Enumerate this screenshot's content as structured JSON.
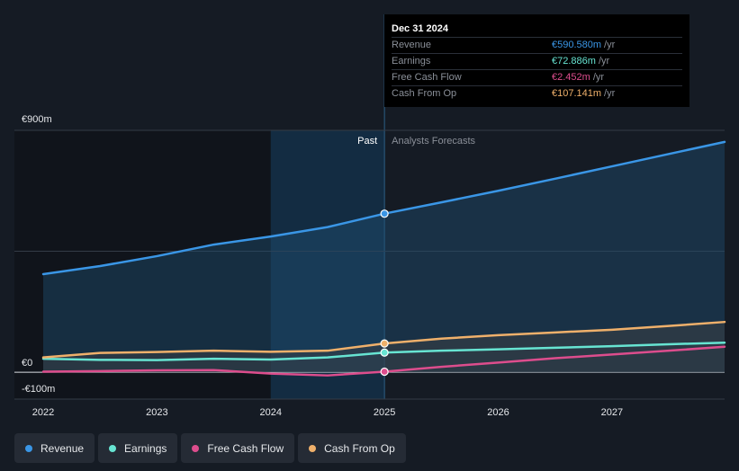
{
  "tooltip": {
    "date": "Dec 31 2024",
    "rows": [
      {
        "label": "Revenue",
        "value": "€590.580m",
        "unit": "/yr",
        "color": "#3a96e6"
      },
      {
        "label": "Earnings",
        "value": "€72.886m",
        "unit": "/yr",
        "color": "#67e4d2"
      },
      {
        "label": "Free Cash Flow",
        "value": "€2.452m",
        "unit": "/yr",
        "color": "#dd4d8d"
      },
      {
        "label": "Cash From Op",
        "value": "€107.141m",
        "unit": "/yr",
        "color": "#efb06b"
      }
    ]
  },
  "legend": [
    {
      "label": "Revenue",
      "color": "#3a96e6"
    },
    {
      "label": "Earnings",
      "color": "#67e4d2"
    },
    {
      "label": "Free Cash Flow",
      "color": "#dd4d8d"
    },
    {
      "label": "Cash From Op",
      "color": "#efb06b"
    }
  ],
  "chart_data": {
    "type": "line",
    "y_tick_labels": [
      "€900m",
      "€0",
      "-€100m"
    ],
    "ylim": [
      -100,
      900
    ],
    "xlim": [
      2022.0,
      2027.99
    ],
    "x_tick_values": [
      2022,
      2023,
      2024,
      2025,
      2026,
      2027
    ],
    "x_tick_labels": [
      "2022",
      "2023",
      "2024",
      "2025",
      "2026",
      "2027"
    ],
    "region_labels": {
      "past": "Past",
      "forecast": "Analysts Forecasts"
    },
    "past_end": 2025.0,
    "highlight_start": 2024.0,
    "series": [
      {
        "name": "Revenue",
        "color": "#3a96e6",
        "x": [
          2022.0,
          2022.5,
          2023.0,
          2023.5,
          2024.0,
          2024.5,
          2025.0,
          2025.5,
          2026.0,
          2026.5,
          2027.0,
          2027.5,
          2027.99
        ],
        "y": [
          365,
          395,
          432,
          475,
          505,
          540,
          590,
          632,
          675,
          720,
          766,
          812,
          857
        ]
      },
      {
        "name": "Earnings",
        "color": "#67e4d2",
        "x": [
          2022.0,
          2022.5,
          2023.0,
          2023.5,
          2024.0,
          2024.5,
          2025.0,
          2025.5,
          2026.0,
          2026.5,
          2027.0,
          2027.5,
          2027.99
        ],
        "y": [
          50,
          46,
          45,
          50,
          47,
          55,
          73,
          80,
          85,
          91,
          97,
          104,
          110
        ]
      },
      {
        "name": "Free Cash Flow",
        "color": "#dd4d8d",
        "x": [
          2022.0,
          2022.5,
          2023.0,
          2023.5,
          2024.0,
          2024.5,
          2025.0,
          2025.5,
          2026.0,
          2026.5,
          2027.0,
          2027.5,
          2027.99
        ],
        "y": [
          2,
          4,
          7,
          8,
          -5,
          -12,
          2,
          20,
          36,
          52,
          66,
          80,
          95
        ]
      },
      {
        "name": "Cash From Op",
        "color": "#efb06b",
        "x": [
          2022.0,
          2022.5,
          2023.0,
          2023.5,
          2024.0,
          2024.5,
          2025.0,
          2025.5,
          2026.0,
          2026.5,
          2027.0,
          2027.5,
          2027.99
        ],
        "y": [
          55,
          72,
          75,
          80,
          76,
          80,
          107,
          125,
          138,
          148,
          158,
          172,
          187
        ]
      }
    ]
  }
}
